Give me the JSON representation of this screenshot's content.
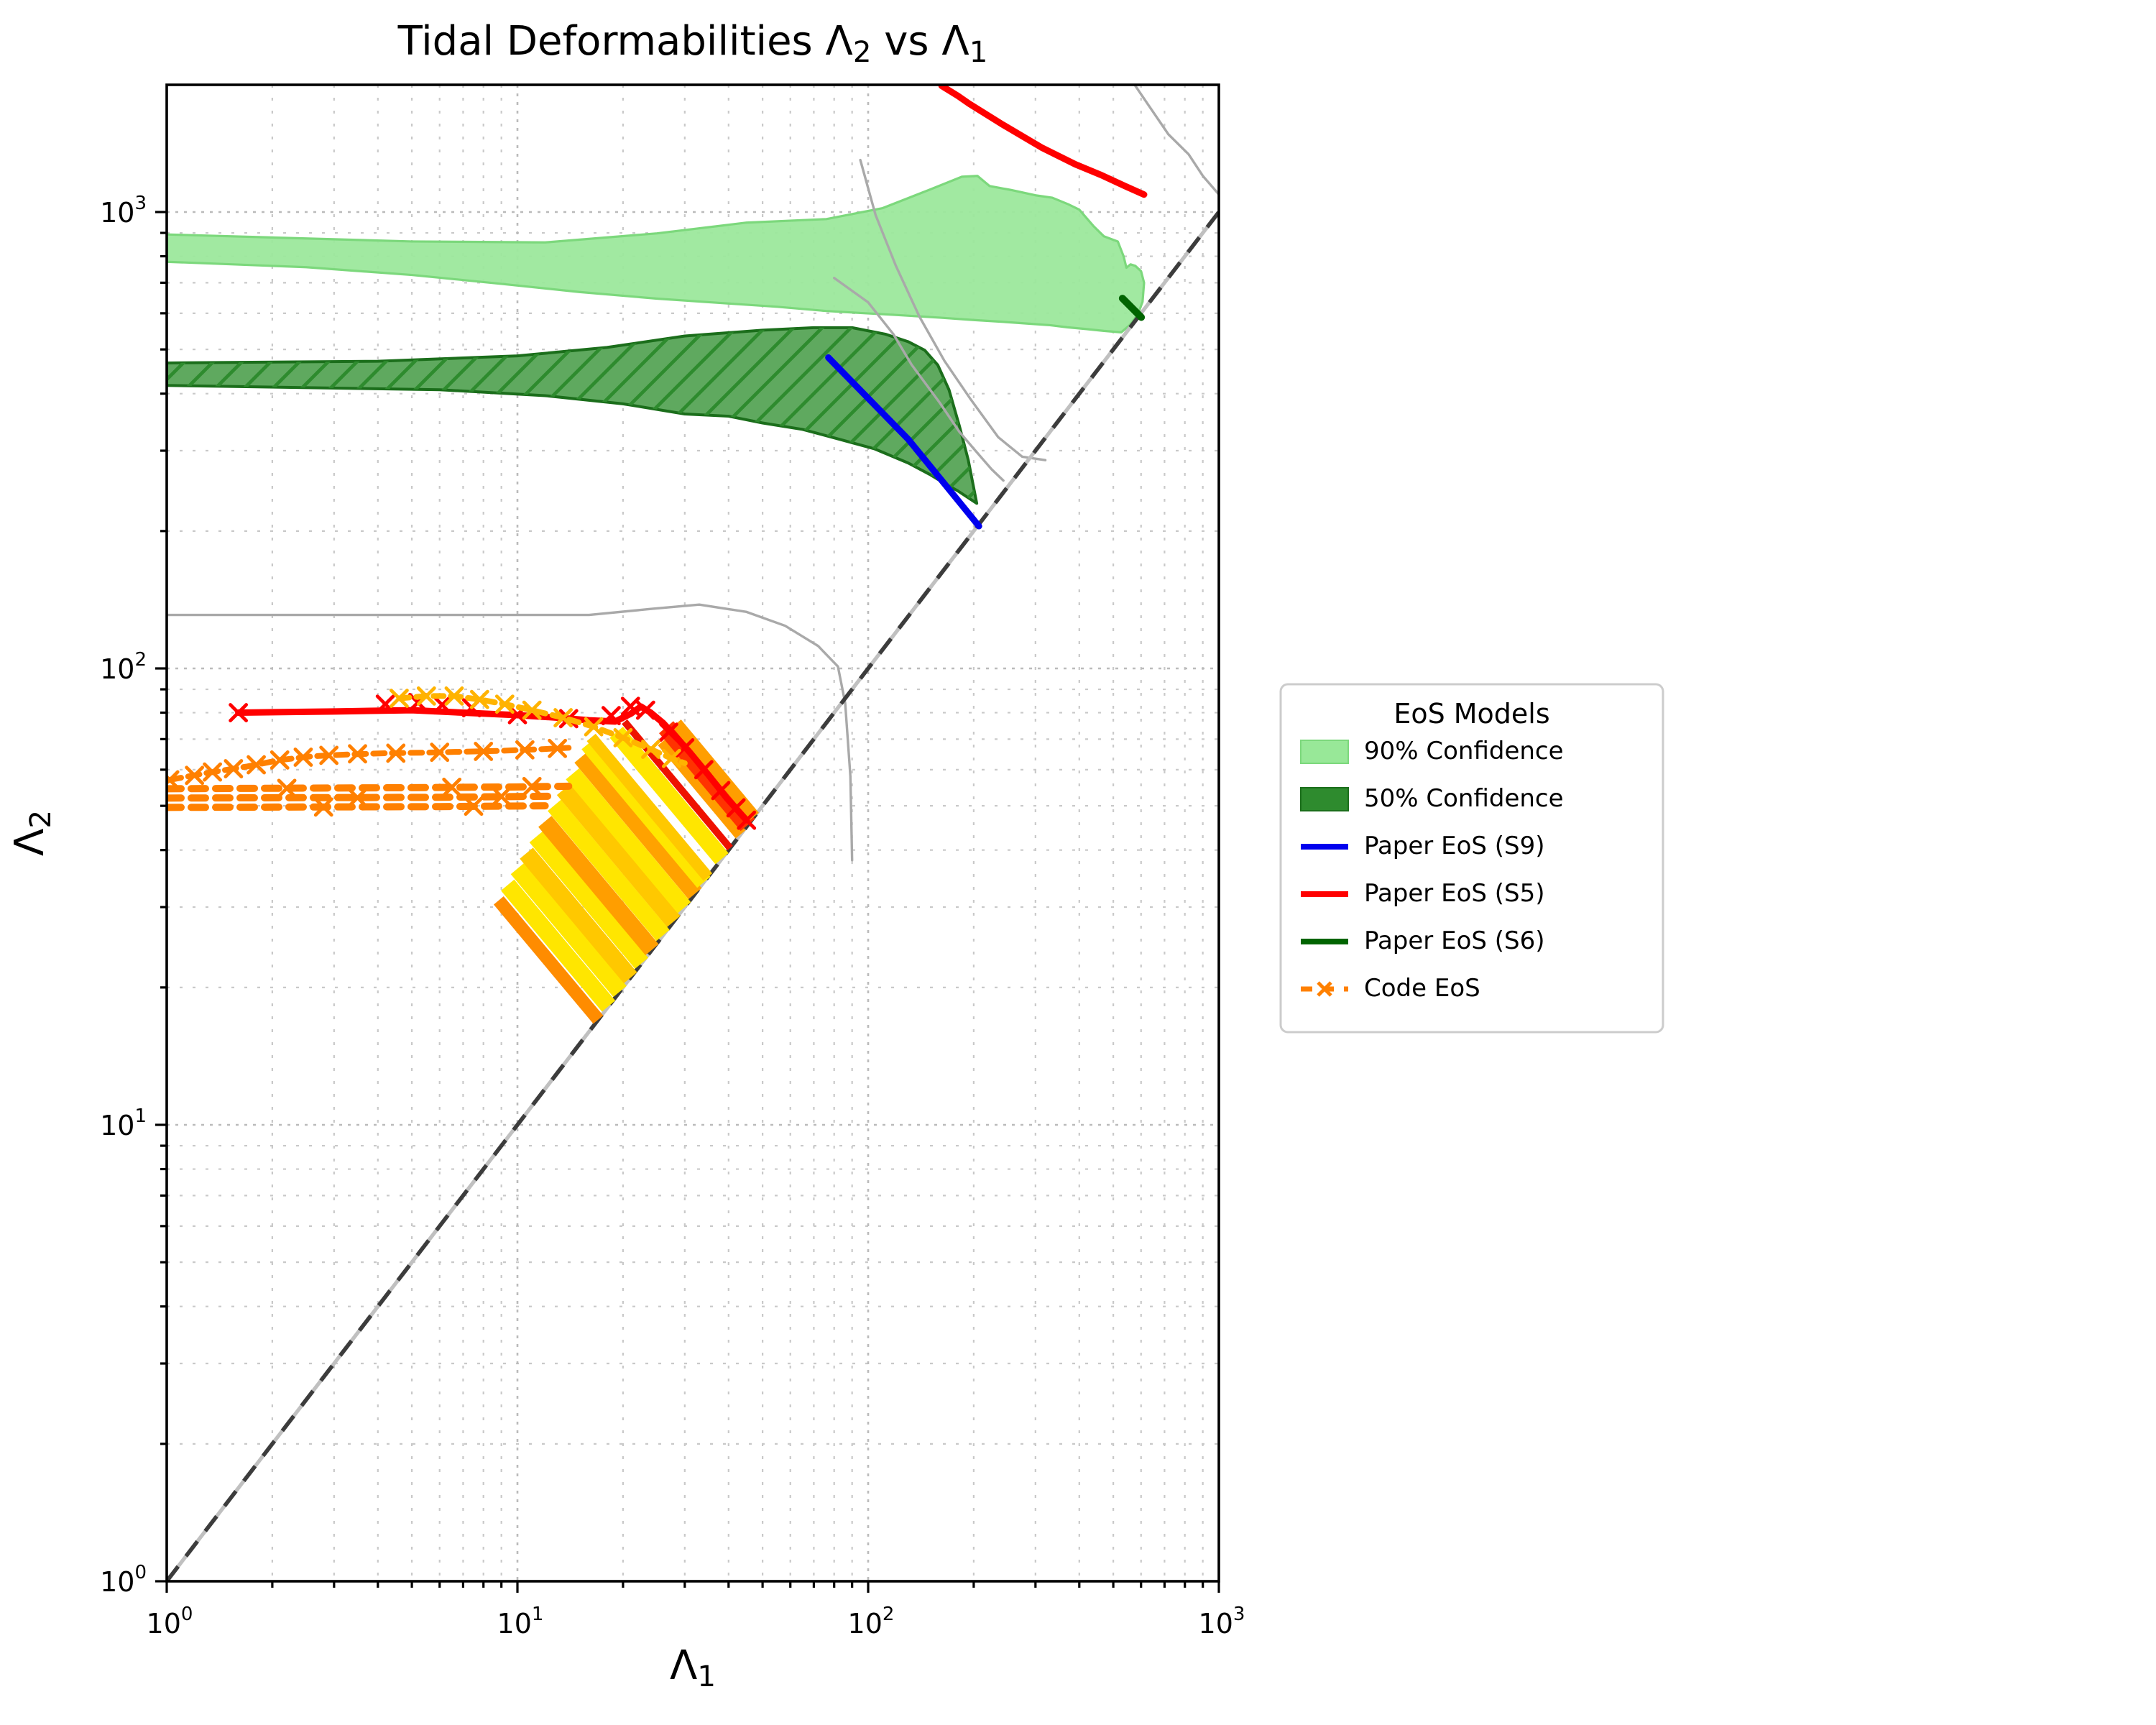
{
  "title_parts": [
    {
      "t": "Tidal Deformabilities Λ"
    },
    {
      "sub": "2"
    },
    {
      "t": " vs Λ"
    },
    {
      "sub": "1"
    }
  ],
  "xlabel_parts": [
    {
      "t": "Λ"
    },
    {
      "sub": "1"
    }
  ],
  "ylabel_parts": [
    {
      "t": "Λ"
    },
    {
      "sub": "2"
    }
  ],
  "legend": {
    "title": "EoS Models",
    "entries": [
      {
        "label": "90% Confidence",
        "type": "patch",
        "color": "#98E898",
        "edge": "#7CD87C"
      },
      {
        "label": "50% Confidence",
        "type": "patch",
        "color": "#2E8B2E",
        "edge": "#1B6E1B"
      },
      {
        "label": "Paper EoS (S9)",
        "type": "line",
        "color": "#0000EE"
      },
      {
        "label": "Paper EoS (S5)",
        "type": "line",
        "color": "#FF0000"
      },
      {
        "label": "Paper EoS (S6)",
        "type": "line",
        "color": "#006400"
      },
      {
        "label": "Code EoS",
        "type": "dashx",
        "color": "#FF8000"
      }
    ]
  },
  "chart_data": {
    "type": "line",
    "title": "Tidal Deformabilities Λ2 vs Λ1",
    "xlabel": "Λ1",
    "ylabel": "Λ2",
    "xscale": "log",
    "yscale": "log",
    "xlim": [
      1,
      1000
    ],
    "ylim": [
      1,
      1897
    ],
    "grid": true,
    "x_major_ticks": [
      {
        "v": 1,
        "base": "10",
        "exp": "0"
      },
      {
        "v": 10,
        "base": "10",
        "exp": "1"
      },
      {
        "v": 100,
        "base": "10",
        "exp": "2"
      },
      {
        "v": 1000,
        "base": "10",
        "exp": "3"
      }
    ],
    "y_major_ticks": [
      {
        "v": 1,
        "base": "10",
        "exp": "0"
      },
      {
        "v": 10,
        "base": "10",
        "exp": "1"
      },
      {
        "v": 100,
        "base": "10",
        "exp": "2"
      },
      {
        "v": 1000,
        "base": "10",
        "exp": "3"
      }
    ],
    "regions": [
      {
        "name": "90% Confidence",
        "fill": "#9CE89C",
        "edge": "#7CD87C",
        "hatch": false,
        "points": [
          [
            1,
            893
          ],
          [
            5,
            862
          ],
          [
            12,
            858
          ],
          [
            25,
            898
          ],
          [
            45,
            948
          ],
          [
            76,
            965
          ],
          [
            110,
            1020
          ],
          [
            150,
            1120
          ],
          [
            185,
            1195
          ],
          [
            205,
            1200
          ],
          [
            222,
            1140
          ],
          [
            255,
            1118
          ],
          [
            300,
            1088
          ],
          [
            335,
            1075
          ],
          [
            372,
            1040
          ],
          [
            400,
            1012
          ],
          [
            440,
            930
          ],
          [
            470,
            885
          ],
          [
            515,
            862
          ],
          [
            535,
            800
          ],
          [
            545,
            755
          ],
          [
            560,
            768
          ],
          [
            578,
            762
          ],
          [
            600,
            742
          ],
          [
            612,
            700
          ],
          [
            606,
            636
          ],
          [
            588,
            598
          ],
          [
            558,
            566
          ],
          [
            527,
            545
          ],
          [
            470,
            549
          ],
          [
            420,
            554
          ],
          [
            370,
            559
          ],
          [
            330,
            565
          ],
          [
            290,
            569
          ],
          [
            240,
            575
          ],
          [
            200,
            580
          ],
          [
            160,
            587
          ],
          [
            120,
            595
          ],
          [
            95,
            601
          ],
          [
            76,
            607
          ],
          [
            55,
            620
          ],
          [
            38,
            632
          ],
          [
            25,
            646
          ],
          [
            15,
            668
          ],
          [
            9,
            696
          ],
          [
            5,
            728
          ],
          [
            2.5,
            757
          ],
          [
            1,
            778
          ]
        ]
      },
      {
        "name": "50% Confidence",
        "fill": "#5FA95F",
        "edge": "#1B6E1B",
        "hatch": true,
        "hatch_color": "#2E8B2E",
        "points": [
          [
            1,
            467
          ],
          [
            4,
            471
          ],
          [
            10,
            484
          ],
          [
            18,
            505
          ],
          [
            30,
            535
          ],
          [
            50,
            551
          ],
          [
            70,
            558
          ],
          [
            90,
            558
          ],
          [
            112,
            540
          ],
          [
            130,
            520
          ],
          [
            145,
            498
          ],
          [
            158,
            462
          ],
          [
            170,
            408
          ],
          [
            182,
            340
          ],
          [
            193,
            286
          ],
          [
            204,
            230
          ],
          [
            180,
            245
          ],
          [
            167,
            253
          ],
          [
            150,
            266
          ],
          [
            130,
            282
          ],
          [
            104,
            303
          ],
          [
            80,
            320
          ],
          [
            65,
            334
          ],
          [
            50,
            345
          ],
          [
            40,
            357
          ],
          [
            30,
            361
          ],
          [
            20,
            380
          ],
          [
            12,
            396
          ],
          [
            6,
            408
          ],
          [
            1,
            417
          ]
        ]
      }
    ],
    "diagonal": {
      "name": "equal-deformability line",
      "points": [
        [
          1,
          1
        ],
        [
          1897,
          1897
        ]
      ],
      "under_color": "#C0C0C0",
      "dash_color": "#3C3C3C"
    },
    "gray_contours": [
      {
        "name": "contour-left",
        "points": [
          [
            1,
            131
          ],
          [
            8,
            131
          ],
          [
            16,
            131
          ],
          [
            24,
            135
          ],
          [
            33,
            138
          ],
          [
            45,
            133
          ],
          [
            58,
            124
          ],
          [
            72,
            112
          ],
          [
            82,
            101
          ],
          [
            86,
            84
          ],
          [
            89,
            58
          ],
          [
            90,
            38
          ]
        ]
      },
      {
        "name": "contour-mid-long",
        "points": [
          [
            95,
            1300
          ],
          [
            105,
            985
          ],
          [
            120,
            762
          ],
          [
            140,
            590
          ],
          [
            165,
            472
          ],
          [
            195,
            391
          ],
          [
            235,
            321
          ],
          [
            275,
            291
          ],
          [
            320,
            286
          ]
        ]
      },
      {
        "name": "contour-mid-short",
        "points": [
          [
            80,
            717
          ],
          [
            100,
            634
          ],
          [
            118,
            540
          ],
          [
            133,
            463
          ],
          [
            160,
            382
          ],
          [
            182,
            330
          ],
          [
            200,
            303
          ],
          [
            225,
            273
          ],
          [
            243,
            258
          ]
        ]
      },
      {
        "name": "contour-top-right",
        "points": [
          [
            578,
            1890
          ],
          [
            625,
            1730
          ],
          [
            718,
            1480
          ],
          [
            820,
            1338
          ],
          [
            900,
            1200
          ],
          [
            1000,
            1093
          ]
        ]
      }
    ],
    "series": [
      {
        "name": "Paper EoS (S5) upper",
        "color": "#FF0000",
        "width": 4.5,
        "dash": null,
        "points": [
          [
            162,
            1890
          ],
          [
            180,
            1798
          ],
          [
            194,
            1728
          ],
          [
            240,
            1560
          ],
          [
            312,
            1385
          ],
          [
            390,
            1272
          ],
          [
            462,
            1205
          ],
          [
            540,
            1140
          ],
          [
            612,
            1092
          ]
        ]
      },
      {
        "name": "Paper EoS (S5) lower",
        "color": "#FF0000",
        "width": 4.5,
        "dash": null,
        "points": [
          [
            1.6,
            80
          ],
          [
            3,
            80.5
          ],
          [
            5,
            81
          ],
          [
            7,
            80
          ],
          [
            10,
            79
          ],
          [
            13,
            78
          ],
          [
            16,
            77
          ],
          [
            19,
            76.5
          ],
          [
            21,
            79.5
          ],
          [
            22.5,
            82.5
          ],
          [
            24,
            80
          ],
          [
            26,
            76
          ],
          [
            28,
            71.5
          ],
          [
            31,
            65.5
          ],
          [
            35,
            58.5
          ],
          [
            39.5,
            52
          ],
          [
            45,
            46.5
          ]
        ],
        "markers": [
          [
            1.6,
            80
          ],
          [
            4.2,
            83.5
          ],
          [
            5.2,
            84.2
          ],
          [
            6.1,
            83.2
          ],
          [
            7.4,
            82
          ],
          [
            10,
            79.2
          ],
          [
            14,
            77.6
          ],
          [
            18.5,
            78.8
          ],
          [
            21,
            82.6
          ],
          [
            23.2,
            81
          ],
          [
            27,
            72.5
          ],
          [
            30,
            67
          ],
          [
            34,
            60
          ],
          [
            38,
            54
          ],
          [
            42,
            49.5
          ],
          [
            45,
            46.5
          ]
        ]
      },
      {
        "name": "Paper EoS (S9)",
        "color": "#0000EE",
        "width": 4.5,
        "dash": null,
        "points": [
          [
            77,
            480
          ],
          [
            130,
            318
          ],
          [
            207,
            205
          ]
        ]
      },
      {
        "name": "Paper EoS (S6)",
        "color": "#006400",
        "width": 5,
        "dash": null,
        "points": [
          [
            531,
            647
          ],
          [
            601,
            588
          ]
        ]
      },
      {
        "name": "Code EoS (amber branch)",
        "color": "#FFB300",
        "width": 4,
        "dash": "7 5",
        "points": [
          [
            4.6,
            86
          ],
          [
            5.5,
            87
          ],
          [
            6.6,
            87
          ],
          [
            7.8,
            85.5
          ],
          [
            9.2,
            83.5
          ],
          [
            11,
            81
          ],
          [
            13.5,
            78
          ],
          [
            16.5,
            74.5
          ],
          [
            20,
            70.5
          ],
          [
            24,
            66.5
          ],
          [
            27.5,
            63.5
          ],
          [
            30,
            62
          ]
        ],
        "markers": [
          [
            4.6,
            86
          ],
          [
            5.5,
            87
          ],
          [
            6.6,
            87
          ],
          [
            7.8,
            85.5
          ],
          [
            9.2,
            83.5
          ],
          [
            11,
            81
          ],
          [
            13.5,
            78
          ],
          [
            16.5,
            74.5
          ],
          [
            20,
            70.5
          ],
          [
            24,
            66.5
          ],
          [
            27.5,
            63.5
          ]
        ]
      },
      {
        "name": "Code EoS (rising branch)",
        "color": "#FF8000",
        "width": 4,
        "dash": "8 5",
        "points": [
          [
            1.02,
            57
          ],
          [
            1.3,
            59
          ],
          [
            1.7,
            61
          ],
          [
            2.1,
            63
          ],
          [
            2.6,
            64.2
          ],
          [
            3.3,
            64.8
          ],
          [
            4.2,
            65.2
          ],
          [
            5.5,
            65.4
          ],
          [
            7,
            65.7
          ],
          [
            9,
            66
          ],
          [
            11.5,
            66.5
          ],
          [
            14,
            67
          ]
        ],
        "markers": [
          [
            1.02,
            57
          ],
          [
            1.2,
            58.3
          ],
          [
            1.35,
            59.3
          ],
          [
            1.55,
            60.3
          ],
          [
            1.8,
            61.5
          ],
          [
            2.1,
            63
          ],
          [
            2.45,
            63.9
          ],
          [
            2.9,
            64.5
          ],
          [
            3.5,
            65
          ],
          [
            4.5,
            65.2
          ],
          [
            6,
            65.5
          ],
          [
            8,
            65.8
          ],
          [
            10.5,
            66.3
          ],
          [
            13,
            66.8
          ]
        ]
      },
      {
        "name": "Code EoS (branch 3)",
        "color": "#FF8000",
        "width": 5,
        "dash": "10 7",
        "points": [
          [
            1,
            54.5
          ],
          [
            5,
            54.8
          ],
          [
            10,
            55
          ],
          [
            14,
            55.2
          ]
        ],
        "markers": [
          [
            2.2,
            54.6
          ],
          [
            6.5,
            54.9
          ],
          [
            11,
            55.1
          ]
        ]
      },
      {
        "name": "Code EoS (branch 4)",
        "color": "#FF8000",
        "width": 5,
        "dash": "10 7",
        "points": [
          [
            1,
            52
          ],
          [
            6,
            52.2
          ],
          [
            13,
            52.5
          ]
        ],
        "markers": [
          [
            3.5,
            52.1
          ],
          [
            9,
            52.4
          ]
        ]
      },
      {
        "name": "Code EoS (branch 5)",
        "color": "#FF8000",
        "width": 5,
        "dash": "10 7",
        "points": [
          [
            1,
            49.6
          ],
          [
            6,
            49.8
          ],
          [
            12,
            50
          ]
        ],
        "markers": [
          [
            2.8,
            49.7
          ],
          [
            7.5,
            49.9
          ]
        ]
      }
    ],
    "mass_ratio_stripes": {
      "comment": "segments from diagonal point (t,t) up-left to (t*f, t*f^-0.92)",
      "slope_exp": -0.92,
      "stripes": [
        {
          "t": 17.0,
          "f": 0.52,
          "color": "#FF8C00",
          "w": 9
        },
        {
          "t": 18.2,
          "f": 0.515,
          "color": "#FFE600",
          "w": 12
        },
        {
          "t": 19.6,
          "f": 0.51,
          "color": "#FFE600",
          "w": 12
        },
        {
          "t": 21.0,
          "f": 0.505,
          "color": "#FFC800",
          "w": 12
        },
        {
          "t": 22.6,
          "f": 0.5,
          "color": "#FFE600",
          "w": 12
        },
        {
          "t": 24.2,
          "f": 0.495,
          "color": "#FF9E00",
          "w": 12
        },
        {
          "t": 26.0,
          "f": 0.49,
          "color": "#FFE600",
          "w": 12
        },
        {
          "t": 27.9,
          "f": 0.485,
          "color": "#FFC800",
          "w": 12
        },
        {
          "t": 29.9,
          "f": 0.48,
          "color": "#FFE600",
          "w": 12
        },
        {
          "t": 32.1,
          "f": 0.473,
          "color": "#FFA200",
          "w": 12
        },
        {
          "t": 34.0,
          "f": 0.468,
          "color": "#FFE600",
          "w": 12
        },
        {
          "t": 34.9,
          "f": 0.465,
          "color": "#FFC800",
          "w": 8
        },
        {
          "t": 38.3,
          "f": 0.5,
          "color": "#FFE600",
          "w": 12
        },
        {
          "t": 40.4,
          "f": 0.5,
          "color": "#EE1100",
          "w": 5
        },
        {
          "t": 43.3,
          "f": 0.6,
          "color": "#FF9E00",
          "w": 9
        },
        {
          "t": 45.4,
          "f": 0.585,
          "color": "#FF3300",
          "w": 13
        },
        {
          "t": 47.4,
          "f": 0.6,
          "color": "#FF9E00",
          "w": 8
        }
      ]
    }
  }
}
